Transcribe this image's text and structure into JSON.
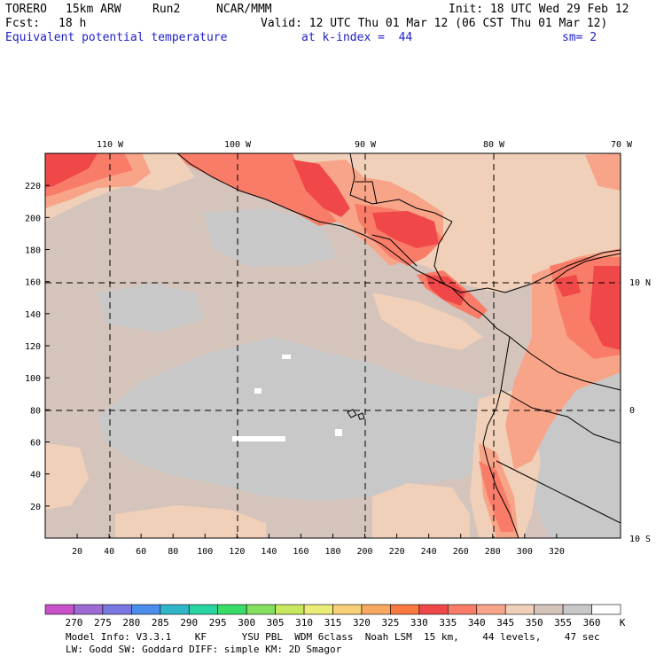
{
  "header": {
    "model": "TORERO",
    "resolution": "15km ARW",
    "run": "Run2",
    "org": "NCAR/MMM",
    "init": "Init: 18 UTC Wed 29 Feb 12",
    "fcst_label": "Fcst:",
    "fcst_value": "18 h",
    "valid": "Valid: 12 UTC Thu 01 Mar 12 (06 CST Thu 01 Mar 12)",
    "field": "Equivalent potential temperature",
    "level": "at k-index =  44",
    "smooth": "sm= 2"
  },
  "map": {
    "top_lon_labels": [
      "110 W",
      "100 W",
      "90 W",
      "80 W",
      "70 W"
    ],
    "right_lat_labels": [
      "10 N",
      "0",
      "10 S"
    ],
    "y_tick_labels": [
      "20",
      "40",
      "60",
      "80",
      "100",
      "120",
      "140",
      "160",
      "180",
      "200",
      "220"
    ],
    "x_tick_labels": [
      "20",
      "40",
      "60",
      "80",
      "100",
      "120",
      "140",
      "160",
      "180",
      "200",
      "220",
      "240",
      "260",
      "280",
      "300",
      "320"
    ],
    "colors": {
      "c330": "#f04848",
      "c335": "#f87c68",
      "c340": "#f8a488",
      "c345": "#f0d0b8",
      "c350": "#d4c4bc",
      "c355": "#c8c8c8",
      "c360": "#ffffff"
    }
  },
  "colorbar": {
    "labels": [
      "270",
      "275",
      "280",
      "285",
      "290",
      "295",
      "300",
      "305",
      "310",
      "315",
      "320",
      "325",
      "330",
      "335",
      "340",
      "345",
      "350",
      "355",
      "360"
    ],
    "unit": "K",
    "colors": [
      "#c850c8",
      "#9c6cd4",
      "#7878e0",
      "#4c8cec",
      "#30b4c8",
      "#28d4a0",
      "#38dc68",
      "#84e060",
      "#c8e860",
      "#ecec78",
      "#f8d078",
      "#f8a860",
      "#f87840",
      "#f04848",
      "#f87c68",
      "#f8a488",
      "#f0d0b8",
      "#d4c4bc",
      "#c8c8c8",
      "#ffffff"
    ]
  },
  "footer": {
    "line1": "Model Info: V3.3.1    KF      YSU PBL  WDM 6class  Noah LSM  15 km,    44 levels,    47 sec",
    "line2": "LW: Godd SW: Goddard DIFF: simple KM: 2D Smagor"
  }
}
